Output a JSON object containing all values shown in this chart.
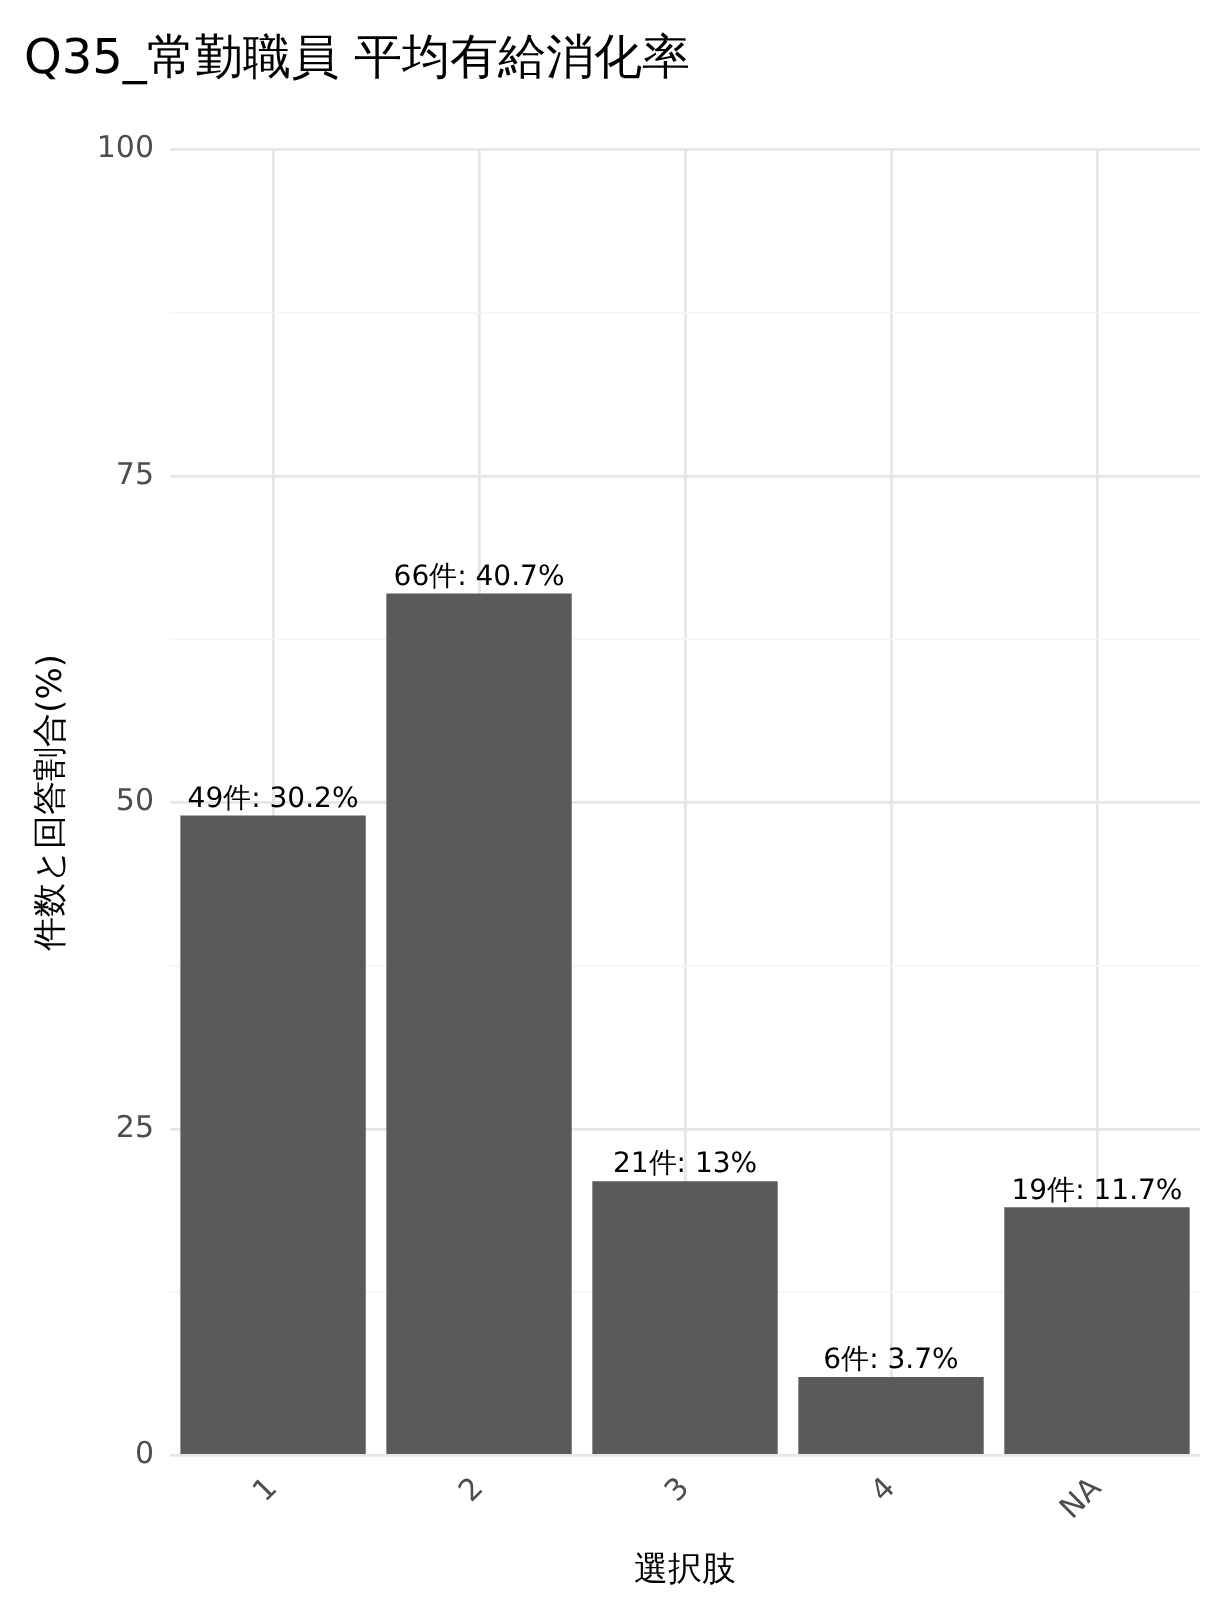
{
  "chart_data": {
    "type": "bar",
    "title": "Q35_常勤職員 平均有給消化率",
    "xlabel": "選択肢",
    "ylabel": "件数と回答割合(%)",
    "categories": [
      "1",
      "2",
      "3",
      "4",
      "NA"
    ],
    "values": [
      49,
      66,
      21,
      6,
      19
    ],
    "value_labels": [
      "49件: 30.2%",
      "66件: 40.7%",
      "21件: 13%",
      "6件: 3.7%",
      "19件: 11.7%"
    ],
    "color": "#595b5b",
    "ylim": [
      0,
      100
    ],
    "yticks": [
      0,
      {
        "value": 12.5,
        "label": null
      },
      25,
      {
        "value": 37.5,
        "label": null
      },
      50,
      {
        "value": 62.5,
        "label": null
      },
      75,
      {
        "value": 87.5,
        "label": null
      },
      100
    ],
    "grid": true
  }
}
